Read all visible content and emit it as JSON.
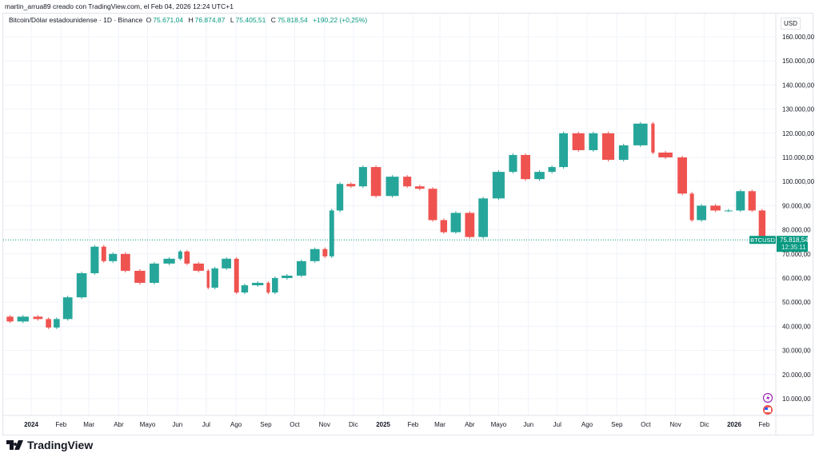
{
  "credit": "martin_arrua89 creado con TradingView.com, el Feb 04, 2026 12:24 UTC+1",
  "legend": {
    "symbol": "Bitcoin/Dólar estadounidense · 1D · Binance",
    "o_label": "O",
    "o": "75.671,04",
    "h_label": "H",
    "h": "76.874,87",
    "l_label": "L",
    "l": "75.405,51",
    "c_label": "C",
    "c": "75.818,54",
    "change": "+190,22 (+0,25%)"
  },
  "currency": "USD",
  "last_price": {
    "ticker": "BTCUSD",
    "price": "75.818,54",
    "countdown": "12:35:11",
    "value": 75818.54
  },
  "brand": "TradingView",
  "colors": {
    "up": "#26a69a",
    "down": "#ef5350",
    "accent": "#089981"
  },
  "icons": [
    "lightning-event-icon",
    "us-flag-event-icon"
  ],
  "chart_data": {
    "type": "candlestick",
    "ylim": [
      0,
      165000
    ],
    "y_ticks": [
      10000,
      20000,
      30000,
      40000,
      50000,
      60000,
      70000,
      80000,
      90000,
      100000,
      110000,
      120000,
      130000,
      140000,
      150000,
      160000
    ],
    "y_tick_labels": [
      "10.000,00",
      "20.000,00",
      "30.000,00",
      "40.000,00",
      "50.000,00",
      "60.000,00",
      "70.000,00",
      "80.000,00",
      "90.000,00",
      "100.000,00",
      "110.000,00",
      "120.000,00",
      "130.000,00",
      "140.000,00",
      "150.000,00",
      "160.000,00"
    ],
    "x_ticks": [
      {
        "label": "2024",
        "date": "2024-01-01",
        "bold": true
      },
      {
        "label": "Feb",
        "date": "2024-02-01"
      },
      {
        "label": "Mar",
        "date": "2024-03-01"
      },
      {
        "label": "Abr",
        "date": "2024-04-01"
      },
      {
        "label": "Mayo",
        "date": "2024-05-01"
      },
      {
        "label": "Jun",
        "date": "2024-06-01"
      },
      {
        "label": "Jul",
        "date": "2024-07-01"
      },
      {
        "label": "Ago",
        "date": "2024-08-01"
      },
      {
        "label": "Sep",
        "date": "2024-09-01"
      },
      {
        "label": "Oct",
        "date": "2024-10-01"
      },
      {
        "label": "Nov",
        "date": "2024-11-01"
      },
      {
        "label": "Dic",
        "date": "2024-12-01"
      },
      {
        "label": "2025",
        "date": "2025-01-01",
        "bold": true
      },
      {
        "label": "Feb",
        "date": "2025-02-01"
      },
      {
        "label": "Mar",
        "date": "2025-03-01"
      },
      {
        "label": "Abr",
        "date": "2025-04-01"
      },
      {
        "label": "Mayo",
        "date": "2025-05-01"
      },
      {
        "label": "Jun",
        "date": "2025-06-01"
      },
      {
        "label": "Jul",
        "date": "2025-07-01"
      },
      {
        "label": "Ago",
        "date": "2025-08-01"
      },
      {
        "label": "Sep",
        "date": "2025-09-01"
      },
      {
        "label": "Oct",
        "date": "2025-10-01"
      },
      {
        "label": "Nov",
        "date": "2025-11-01"
      },
      {
        "label": "Dic",
        "date": "2025-12-01"
      },
      {
        "label": "2026",
        "date": "2026-01-01",
        "bold": true
      },
      {
        "label": "Feb",
        "date": "2026-02-01"
      }
    ],
    "closes": [
      [
        "2023-12-05",
        44000
      ],
      [
        "2023-12-15",
        42000
      ],
      [
        "2024-01-01",
        44000
      ],
      [
        "2024-01-15",
        43000
      ],
      [
        "2024-01-23",
        39500
      ],
      [
        "2024-02-01",
        43000
      ],
      [
        "2024-02-15",
        52000
      ],
      [
        "2024-03-01",
        62000
      ],
      [
        "2024-03-13",
        73000
      ],
      [
        "2024-03-20",
        67000
      ],
      [
        "2024-04-01",
        70000
      ],
      [
        "2024-04-15",
        63000
      ],
      [
        "2024-05-01",
        58000
      ],
      [
        "2024-05-15",
        66000
      ],
      [
        "2024-06-01",
        68000
      ],
      [
        "2024-06-07",
        71000
      ],
      [
        "2024-06-15",
        66000
      ],
      [
        "2024-07-01",
        63000
      ],
      [
        "2024-07-05",
        56000
      ],
      [
        "2024-07-15",
        64000
      ],
      [
        "2024-07-29",
        68000
      ],
      [
        "2024-08-05",
        54000
      ],
      [
        "2024-08-15",
        57000
      ],
      [
        "2024-09-01",
        58000
      ],
      [
        "2024-09-06",
        54000
      ],
      [
        "2024-09-15",
        60000
      ],
      [
        "2024-10-01",
        61000
      ],
      [
        "2024-10-15",
        67000
      ],
      [
        "2024-10-29",
        72000
      ],
      [
        "2024-11-05",
        69000
      ],
      [
        "2024-11-12",
        88000
      ],
      [
        "2024-11-22",
        99000
      ],
      [
        "2024-12-05",
        98000
      ],
      [
        "2024-12-17",
        106000
      ],
      [
        "2025-01-01",
        94000
      ],
      [
        "2025-01-20",
        102000
      ],
      [
        "2025-02-01",
        98000
      ],
      [
        "2025-02-15",
        97000
      ],
      [
        "2025-02-28",
        84000
      ],
      [
        "2025-03-10",
        79000
      ],
      [
        "2025-03-25",
        87000
      ],
      [
        "2025-04-08",
        77000
      ],
      [
        "2025-04-22",
        93000
      ],
      [
        "2025-05-10",
        104000
      ],
      [
        "2025-05-22",
        111000
      ],
      [
        "2025-06-05",
        101000
      ],
      [
        "2025-06-20",
        104000
      ],
      [
        "2025-07-01",
        106000
      ],
      [
        "2025-07-14",
        120000
      ],
      [
        "2025-08-01",
        113000
      ],
      [
        "2025-08-14",
        120000
      ],
      [
        "2025-09-01",
        109000
      ],
      [
        "2025-09-15",
        115000
      ],
      [
        "2025-10-06",
        124000
      ],
      [
        "2025-10-11",
        112000
      ],
      [
        "2025-11-01",
        110000
      ],
      [
        "2025-11-15",
        95000
      ],
      [
        "2025-11-21",
        84000
      ],
      [
        "2025-12-05",
        90000
      ],
      [
        "2025-12-20",
        88000
      ],
      [
        "2026-01-01",
        88000
      ],
      [
        "2026-01-14",
        96000
      ],
      [
        "2026-01-25",
        88000
      ],
      [
        "2026-02-04",
        75818.54
      ]
    ]
  }
}
